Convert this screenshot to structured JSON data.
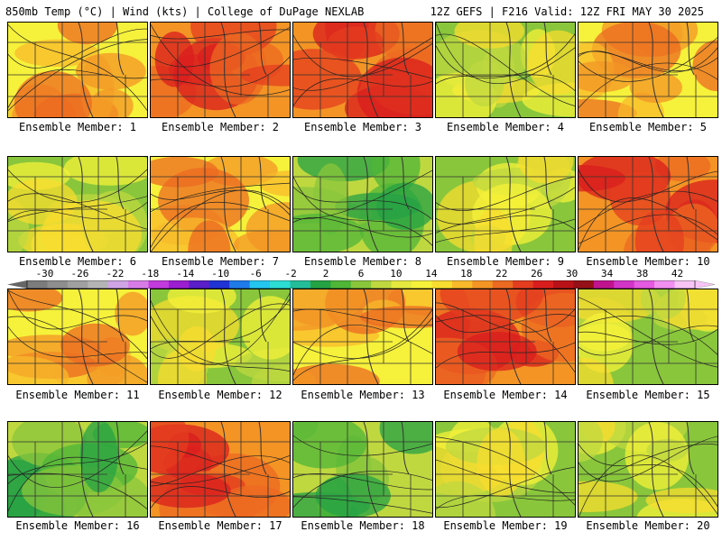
{
  "header": {
    "left": "850mb Temp (°C) | Wind (kts) | College of DuPage NEXLAB",
    "right": "12Z GEFS | F216 Valid: 12Z FRI MAY 30 2025"
  },
  "colorbar": {
    "tick_labels": [
      "-30",
      "-26",
      "-22",
      "-18",
      "-14",
      "-10",
      "-6",
      "-2",
      "2",
      "6",
      "10",
      "14",
      "18",
      "22",
      "26",
      "30",
      "34",
      "38",
      "42"
    ],
    "colors": [
      "#7c7c7c",
      "#8e8e8e",
      "#a0a0a0",
      "#b4b4b4",
      "#cfa4e4",
      "#d77ce6",
      "#c13bdd",
      "#9b1ed0",
      "#5a1fc8",
      "#2033d4",
      "#1f7be8",
      "#24c6ef",
      "#2bdcd2",
      "#24bd9a",
      "#25a244",
      "#4fb637",
      "#89c63b",
      "#bfd840",
      "#e5e93f",
      "#f6f13a",
      "#f8dc2f",
      "#f8b92b",
      "#f39425",
      "#ec6a22",
      "#e43d1f",
      "#d91d1d",
      "#b81218",
      "#951018",
      "#c0148f",
      "#d334c8",
      "#e45ae0",
      "#f190f0",
      "#f8c4f6"
    ],
    "tick_values": [
      -30,
      -26,
      -22,
      -18,
      -14,
      -10,
      -6,
      -2,
      2,
      6,
      10,
      14,
      18,
      22,
      26,
      30,
      34,
      38,
      42
    ]
  },
  "panels": [
    {
      "label": "Ensemble Member: 1"
    },
    {
      "label": "Ensemble Member: 2"
    },
    {
      "label": "Ensemble Member: 3"
    },
    {
      "label": "Ensemble Member: 4"
    },
    {
      "label": "Ensemble Member: 5"
    },
    {
      "label": "Ensemble Member: 6"
    },
    {
      "label": "Ensemble Member: 7"
    },
    {
      "label": "Ensemble Member: 8"
    },
    {
      "label": "Ensemble Member: 9"
    },
    {
      "label": "Ensemble Member: 10"
    },
    {
      "label": "Ensemble Member: 11"
    },
    {
      "label": "Ensemble Member: 12"
    },
    {
      "label": "Ensemble Member: 13"
    },
    {
      "label": "Ensemble Member: 14"
    },
    {
      "label": "Ensemble Member: 15"
    },
    {
      "label": "Ensemble Member: 16"
    },
    {
      "label": "Ensemble Member: 17"
    },
    {
      "label": "Ensemble Member: 18"
    },
    {
      "label": "Ensemble Member: 19"
    },
    {
      "label": "Ensemble Member: 20"
    }
  ]
}
